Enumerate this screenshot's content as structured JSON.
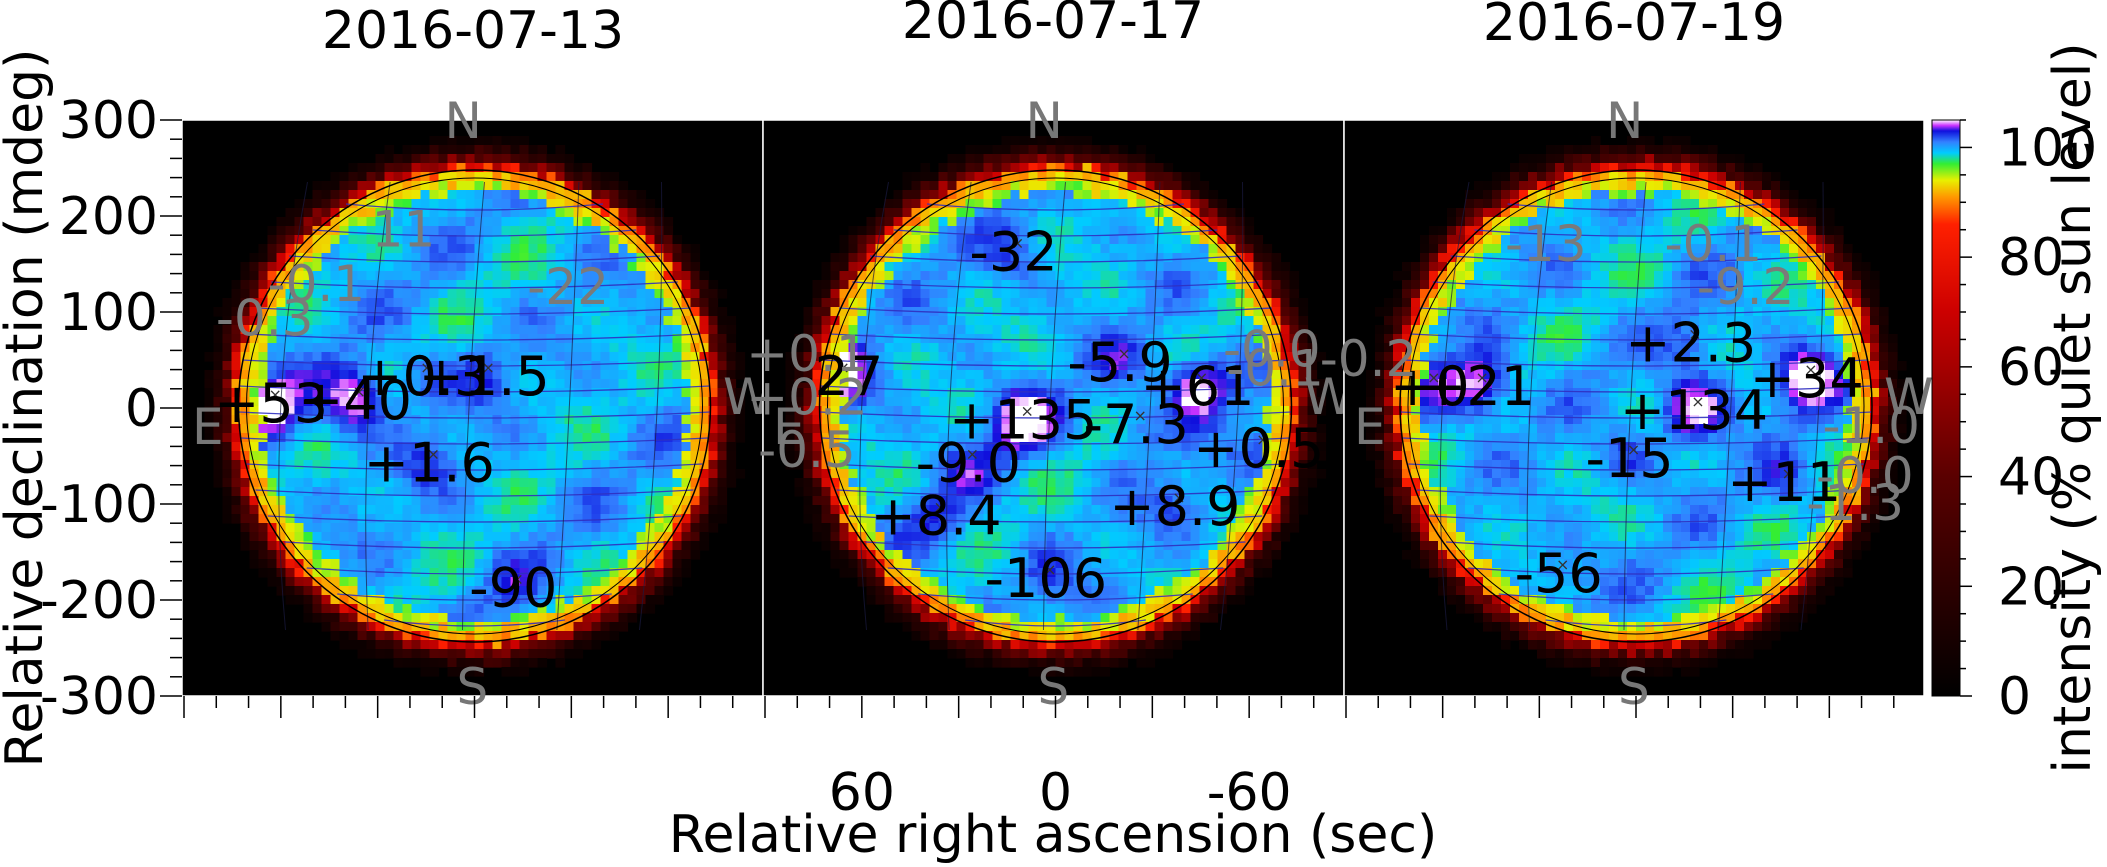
{
  "chart_data": {
    "type": "heatmap",
    "ylabel": "Relative declination (mdeg)",
    "xlabel": "Relative right ascension (sec)",
    "ylim": [
      -300,
      300
    ],
    "xlim": [
      90,
      -90
    ],
    "y_ticks": [
      300,
      200,
      100,
      0,
      -100,
      -200,
      -300
    ],
    "x_ticks": [
      60,
      0,
      -60
    ],
    "colorbar": {
      "label": "intensity (% quiet sun level)",
      "ticks": [
        0,
        20,
        40,
        60,
        80,
        100
      ],
      "range": [
        0,
        105
      ],
      "stops": [
        {
          "v": 0,
          "color": "#000000"
        },
        {
          "v": 40,
          "color": "#5a0000"
        },
        {
          "v": 70,
          "color": "#cc0000"
        },
        {
          "v": 86,
          "color": "#ff2000"
        },
        {
          "v": 91,
          "color": "#ff9900"
        },
        {
          "v": 94,
          "color": "#e8f000"
        },
        {
          "v": 97,
          "color": "#33ee33"
        },
        {
          "v": 99,
          "color": "#00ccff"
        },
        {
          "v": 101,
          "color": "#3380ff"
        },
        {
          "v": 103,
          "color": "#1010dd"
        },
        {
          "v": 104,
          "color": "#cc33ff"
        },
        {
          "v": 105,
          "color": "#ffffff"
        }
      ]
    },
    "compass": {
      "north": "N",
      "south": "S",
      "east": "E",
      "west": "W"
    },
    "panels": [
      {
        "title": "2016-07-13",
        "active_regions": [
          {
            "label": "+53",
            "x": 63,
            "y": 2,
            "bright": true
          },
          {
            "label": "+40",
            "x": 37,
            "y": 5,
            "bright": true
          },
          {
            "label": "+0.3",
            "x": 16,
            "y": 30
          },
          {
            "label": "+1.5",
            "x": -3,
            "y": 30
          },
          {
            "label": "+1.6",
            "x": 14,
            "y": -60
          },
          {
            "label": "-90",
            "x": -12,
            "y": -190
          }
        ],
        "minor_labels": [
          {
            "label": "11",
            "x": 22,
            "y": 185
          },
          {
            "label": "-0.1",
            "x": 49,
            "y": 128
          },
          {
            "label": "-0.3",
            "x": 65,
            "y": 92
          },
          {
            "label": "-22",
            "x": -29,
            "y": 125
          }
        ]
      },
      {
        "title": "2016-07-17",
        "active_regions": [
          {
            "label": "-27",
            "x": 67,
            "y": 30,
            "bright": true
          },
          {
            "label": "+135",
            "x": 10,
            "y": -15,
            "bright": true
          },
          {
            "label": "+61",
            "x": -44,
            "y": 20,
            "bright": true
          },
          {
            "label": "-32",
            "x": 13,
            "y": 160
          },
          {
            "label": "-5.9",
            "x": -20,
            "y": 45
          },
          {
            "label": "-7.3",
            "x": -25,
            "y": -20
          },
          {
            "label": "-9.0",
            "x": 27,
            "y": -60
          },
          {
            "label": "+0.5",
            "x": -63,
            "y": -45
          },
          {
            "label": "+8.4",
            "x": 37,
            "y": -115
          },
          {
            "label": "+8.9",
            "x": -37,
            "y": -105
          },
          {
            "label": "-106",
            "x": 3,
            "y": -180
          }
        ],
        "minor_labels": [
          {
            "label": "+0.1",
            "x": 77,
            "y": 55
          },
          {
            "label": "+0.2",
            "x": 77,
            "y": 10
          },
          {
            "label": "-0.5",
            "x": 77,
            "y": -45
          },
          {
            "label": "-0.0",
            "x": -67,
            "y": 60
          },
          {
            "label": "-0.1",
            "x": -68,
            "y": 40
          }
        ]
      },
      {
        "title": "2016-07-19",
        "active_regions": [
          {
            "label": "+0",
            "x": 64,
            "y": 20
          },
          {
            "label": "+21",
            "x": 49,
            "y": 20,
            "bright": true
          },
          {
            "label": "+2.3",
            "x": -17,
            "y": 65
          },
          {
            "label": "+34",
            "x": -53,
            "y": 28,
            "bright": true
          },
          {
            "label": "+134",
            "x": -18,
            "y": -5,
            "bright": true
          },
          {
            "label": "-15",
            "x": 2,
            "y": -55
          },
          {
            "label": "+11",
            "x": -46,
            "y": -80
          },
          {
            "label": "-56",
            "x": 24,
            "y": -175
          }
        ],
        "minor_labels": [
          {
            "label": "-0.2",
            "x": 83,
            "y": 50
          },
          {
            "label": "-13",
            "x": 28,
            "y": 170
          },
          {
            "label": "-0.1",
            "x": -24,
            "y": 170
          },
          {
            "label": "-9.2",
            "x": -34,
            "y": 125
          },
          {
            "label": "-1.0",
            "x": -73,
            "y": -20
          },
          {
            "label": "-0.0",
            "x": -71,
            "y": -72
          },
          {
            "label": "-1.3",
            "x": -68,
            "y": -100
          }
        ]
      }
    ]
  }
}
